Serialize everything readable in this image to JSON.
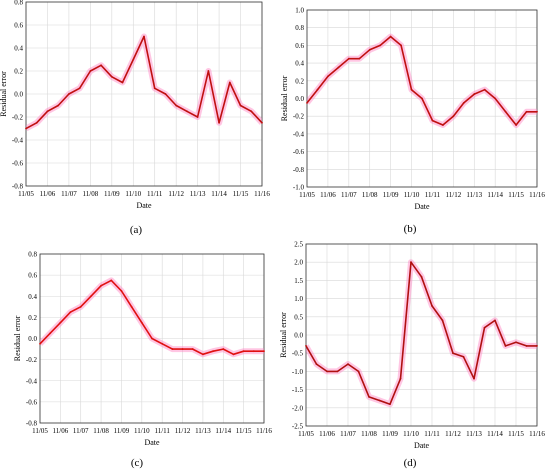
{
  "chart_data": [
    {
      "type": "line",
      "panel_label": "(a)",
      "xlabel": "Date",
      "ylabel": "Residual error",
      "ylim": [
        -0.8,
        0.8
      ],
      "yticks": [
        "0.8",
        "0.6",
        "0.4",
        "0.2",
        "0.0",
        "-0.2",
        "-0.4",
        "-0.6",
        "-0.8"
      ],
      "xticks": [
        "11/05",
        "11/06",
        "11/07",
        "11/08",
        "11/09",
        "11/10",
        "11/11",
        "11/12",
        "11/13",
        "11/14",
        "11/15",
        "11/16"
      ],
      "grid": true,
      "colors": {
        "line": "#c01010",
        "halo": "#ff80c0"
      },
      "x": [
        5.0,
        5.5,
        6.0,
        6.5,
        7.0,
        7.5,
        8.0,
        8.5,
        9.0,
        9.5,
        10.0,
        10.5,
        11.0,
        11.5,
        12.0,
        12.5,
        13.0,
        13.5,
        14.0,
        14.5,
        15.0,
        15.5,
        16.0
      ],
      "y": [
        -0.3,
        -0.25,
        -0.15,
        -0.1,
        0.0,
        0.05,
        0.2,
        0.25,
        0.15,
        0.1,
        0.3,
        0.5,
        0.05,
        0.0,
        -0.1,
        -0.15,
        -0.2,
        0.2,
        -0.25,
        0.1,
        -0.1,
        -0.15,
        -0.25
      ]
    },
    {
      "type": "line",
      "panel_label": "(b)",
      "xlabel": "Date",
      "ylabel": "Residual error",
      "ylim": [
        -1.0,
        1.0
      ],
      "yticks": [
        "1.0",
        "0.8",
        "0.6",
        "0.4",
        "0.2",
        "0.0",
        "-0.2",
        "-0.4",
        "-0.6",
        "-0.8",
        "-1.0"
      ],
      "xticks": [
        "11/05",
        "11/06",
        "11/07",
        "11/08",
        "11/09",
        "11/10",
        "11/11",
        "11/12",
        "11/13",
        "11/14",
        "11/15",
        "11/16"
      ],
      "grid": true,
      "colors": {
        "line": "#c01010",
        "halo": "#ff80c0"
      },
      "x": [
        5.0,
        5.5,
        6.0,
        6.5,
        7.0,
        7.5,
        8.0,
        8.5,
        9.0,
        9.5,
        10.0,
        10.5,
        11.0,
        11.5,
        12.0,
        12.5,
        13.0,
        13.5,
        14.0,
        14.5,
        15.0,
        15.5,
        16.0
      ],
      "y": [
        -0.05,
        0.1,
        0.25,
        0.35,
        0.45,
        0.45,
        0.55,
        0.6,
        0.7,
        0.6,
        0.1,
        0.0,
        -0.25,
        -0.3,
        -0.2,
        -0.05,
        0.05,
        0.1,
        0.0,
        -0.15,
        -0.3,
        -0.15,
        -0.15
      ]
    },
    {
      "type": "line",
      "panel_label": "(c)",
      "xlabel": "Date",
      "ylabel": "Residual error",
      "ylim": [
        -0.8,
        0.8
      ],
      "yticks": [
        "0.8",
        "0.6",
        "0.4",
        "0.2",
        "0.0",
        "-0.2",
        "-0.4",
        "-0.6",
        "-0.8"
      ],
      "xticks": [
        "11/05",
        "11/06",
        "11/07",
        "11/08",
        "11/09",
        "11/10",
        "11/11",
        "11/12",
        "11/13",
        "11/14",
        "11/15",
        "11/16"
      ],
      "grid": true,
      "colors": {
        "line": "#e01010",
        "halo": "#ff80c0"
      },
      "x": [
        5.0,
        5.5,
        6.0,
        6.5,
        7.0,
        7.5,
        8.0,
        8.5,
        9.0,
        9.5,
        10.0,
        10.5,
        11.0,
        11.5,
        12.0,
        12.5,
        13.0,
        13.5,
        14.0,
        14.5,
        15.0,
        15.5,
        16.0
      ],
      "y": [
        -0.05,
        0.05,
        0.15,
        0.25,
        0.3,
        0.4,
        0.5,
        0.55,
        0.45,
        0.3,
        0.15,
        0.0,
        -0.05,
        -0.1,
        -0.1,
        -0.1,
        -0.15,
        -0.12,
        -0.1,
        -0.15,
        -0.12,
        -0.12,
        -0.12
      ]
    },
    {
      "type": "line",
      "panel_label": "(d)",
      "xlabel": "Date",
      "ylabel": "Residual error",
      "ylim": [
        -2.5,
        2.5
      ],
      "yticks": [
        "2.5",
        "2.0",
        "1.5",
        "1.0",
        "0.5",
        "0.0",
        "-0.5",
        "-1.0",
        "-1.5",
        "-2.0",
        "-2.5"
      ],
      "xticks": [
        "11/05",
        "11/06",
        "11/07",
        "11/08",
        "11/09",
        "11/10",
        "11/11",
        "11/12",
        "11/13",
        "11/14",
        "11/15",
        "11/16"
      ],
      "grid": true,
      "colors": {
        "line": "#b01010",
        "halo": "#ff80c0"
      },
      "x": [
        5.0,
        5.5,
        6.0,
        6.5,
        7.0,
        7.5,
        8.0,
        8.5,
        9.0,
        9.5,
        10.0,
        10.5,
        11.0,
        11.5,
        12.0,
        12.5,
        13.0,
        13.5,
        14.0,
        14.5,
        15.0,
        15.5,
        16.0
      ],
      "y": [
        -0.3,
        -0.8,
        -1.0,
        -1.0,
        -0.8,
        -1.0,
        -1.7,
        -1.8,
        -1.9,
        -1.2,
        2.0,
        1.6,
        0.8,
        0.4,
        -0.5,
        -0.6,
        -1.2,
        0.2,
        0.4,
        -0.3,
        -0.2,
        -0.3,
        -0.3
      ]
    }
  ]
}
